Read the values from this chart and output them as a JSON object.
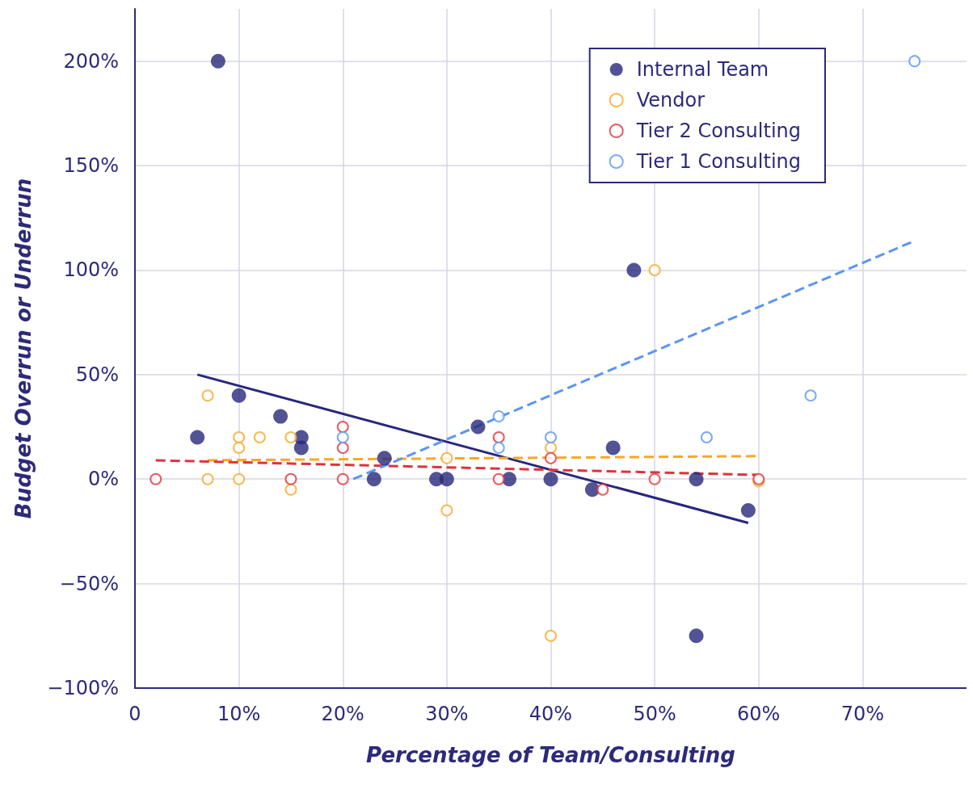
{
  "chart_data": {
    "type": "scatter",
    "xlabel": "Percentage of Team/Consulting",
    "ylabel": "Budget Overrun or Underrun",
    "xlim": [
      0,
      80
    ],
    "xticks": [
      0,
      {
        "value": 10,
        "label": "10%"
      },
      {
        "value": 20,
        "label": "20%"
      },
      {
        "value": 30,
        "label": "30%"
      },
      {
        "value": 40,
        "label": "40%"
      },
      {
        "value": 50,
        "label": "50%"
      },
      {
        "value": 60,
        "label": "60%"
      },
      {
        "value": 70,
        "label": "70%"
      }
    ],
    "ylim": [
      -100,
      225
    ],
    "yticks": [
      {
        "value": -100,
        "label": "−100%"
      },
      {
        "value": -50,
        "label": "−50%"
      },
      {
        "value": 0,
        "label": "0%"
      },
      {
        "value": 50,
        "label": "50%"
      },
      {
        "value": 100,
        "label": "100%"
      },
      {
        "value": 150,
        "label": "150%"
      },
      {
        "value": 200,
        "label": "200%"
      }
    ],
    "grid": true,
    "legend": "top right",
    "marker": "circle",
    "series": [
      {
        "name": "Internal Team",
        "color": "#27287a",
        "x": [
          6,
          8,
          10,
          14,
          16,
          16,
          24,
          23,
          29,
          30,
          33,
          36,
          40,
          44,
          46,
          48,
          54,
          54,
          59
        ],
        "values": [
          20,
          200,
          40,
          30,
          20,
          15,
          10,
          0,
          0,
          0,
          25,
          0,
          0,
          -5,
          15,
          100,
          0,
          -75,
          -15
        ]
      },
      {
        "name": "Vendor",
        "color": "#f9a825",
        "marker": "emptyCircle",
        "x": [
          7,
          7,
          10,
          10,
          10,
          12,
          15,
          15,
          30,
          30,
          40,
          40,
          50,
          60
        ],
        "values": [
          40,
          0,
          20,
          15,
          0,
          20,
          20,
          -5,
          10,
          -15,
          15,
          -75,
          100,
          -1
        ]
      },
      {
        "name": "Tier 2 Consulting",
        "color": "#e0333c",
        "marker": "emptyCircle",
        "x": [
          2,
          15,
          20,
          20,
          20,
          35,
          35,
          40,
          45,
          50,
          60
        ],
        "values": [
          0,
          0,
          25,
          15,
          0,
          20,
          0,
          10,
          -5,
          0,
          0
        ]
      },
      {
        "name": "Tier 1 Consulting",
        "color": "#5b95f5",
        "marker": "emptyCircle",
        "x": [
          20,
          35,
          35,
          40,
          55,
          65,
          75
        ],
        "values": [
          20,
          30,
          15,
          20,
          20,
          40,
          200
        ]
      },
      {
        "type": "line",
        "color": "#27287a",
        "marker": "none",
        "line_style": "solid",
        "x": [
          6,
          59
        ],
        "values": [
          50,
          -21
        ]
      },
      {
        "type": "line",
        "color": "#f9a825",
        "marker": "none",
        "line_style": "dashed",
        "x": [
          7,
          60
        ],
        "values": [
          9,
          11
        ]
      },
      {
        "type": "line",
        "color": "#e0333c",
        "marker": "none",
        "line_style": "dashed",
        "x": [
          2,
          60
        ],
        "values": [
          9,
          2
        ]
      },
      {
        "type": "line",
        "color": "#5b95f5",
        "marker": "none",
        "line_style": "dashed",
        "x": [
          21,
          75
        ],
        "values": [
          0,
          114
        ]
      }
    ]
  }
}
